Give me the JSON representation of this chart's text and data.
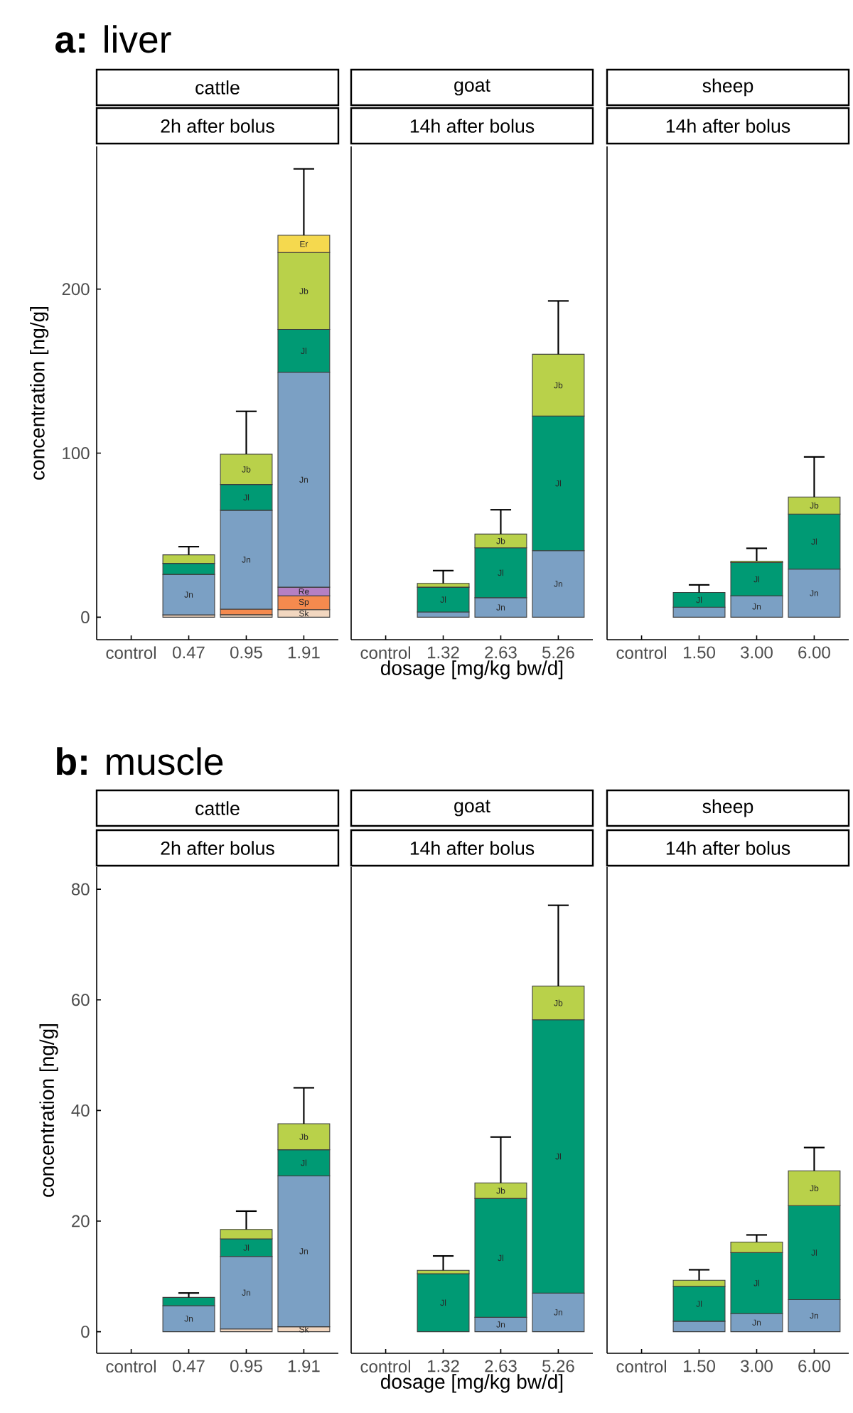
{
  "chart_data": [
    {
      "type": "bar",
      "stacked": true,
      "title": "cattle",
      "subtitle": "2h after bolus",
      "annotations": [
        "**a:** liver"
      ],
      "ylabel": "concentration [ng/g]",
      "categories": [
        "control",
        "0.47",
        "0.95",
        "1.91"
      ],
      "ylim": [
        -13.7,
        287
      ],
      "yticks": [
        0,
        100,
        200
      ],
      "series": [
        {
          "name": "Sk",
          "color": "#f2d7c0",
          "values": [
            null,
            1.4,
            1.5,
            4.6
          ]
        },
        {
          "name": "Sp",
          "color": "#f58a4e",
          "values": [
            null,
            null,
            3.4,
            8.4
          ]
        },
        {
          "name": "Re",
          "color": "#b580c4",
          "values": [
            null,
            null,
            null,
            5.3
          ]
        },
        {
          "name": "Jn",
          "color": "#7ba0c4",
          "values": [
            null,
            24.7,
            60.3,
            131
          ]
        },
        {
          "name": "Jl",
          "color": "#009a74",
          "values": [
            null,
            6.7,
            15.7,
            26.1
          ]
        },
        {
          "name": "Jb",
          "color": "#b9d14a",
          "values": [
            null,
            5.2,
            18.5,
            46.9
          ],
          "errors": [
            null,
            [
              38,
              43
            ],
            [
              99.4,
              125.5
            ],
            null
          ]
        },
        {
          "name": "Er",
          "color": "#f5d94e",
          "values": [
            null,
            null,
            null,
            10.5
          ],
          "errors": [
            null,
            null,
            null,
            [
              232.8,
              273.3
            ]
          ]
        }
      ]
    },
    {
      "type": "bar",
      "stacked": true,
      "title": "goat",
      "subtitle": "14h after bolus",
      "xlabel": "dosage [mg/kg bw/d]",
      "categories": [
        "control",
        "1.32",
        "2.63",
        "5.26"
      ],
      "ylim": [
        -13.7,
        287
      ],
      "tick_labels": "x",
      "series": [
        {
          "name": "Jn",
          "color": "#7ba0c4",
          "values": [
            null,
            3.2,
            11.9,
            40.6
          ]
        },
        {
          "name": "Jl",
          "color": "#009a74",
          "values": [
            null,
            15.1,
            30.4,
            82
          ]
        },
        {
          "name": "Jb",
          "color": "#b9d14a",
          "values": [
            null,
            2.3,
            8.4,
            37.7
          ],
          "errors": [
            null,
            [
              20.6,
              28.4
            ],
            [
              50.7,
              65.5
            ],
            [
              160.3,
              192.8
            ]
          ]
        }
      ]
    },
    {
      "type": "bar",
      "stacked": true,
      "title": "sheep",
      "subtitle": "14h after bolus",
      "categories": [
        "control",
        "1.50",
        "3.00",
        "6.00"
      ],
      "ylim": [
        -13.7,
        287
      ],
      "tick_labels": "x",
      "series": [
        {
          "name": "Jn",
          "color": "#7ba0c4",
          "values": [
            null,
            6.1,
            13,
            29.3
          ]
        },
        {
          "name": "Jl",
          "color": "#009a74",
          "values": [
            null,
            9,
            20.3,
            33.6
          ],
          "errors": [
            null,
            [
              15.1,
              19.7
            ],
            null,
            null
          ]
        },
        {
          "name": "Jb",
          "color": "#b9d14a",
          "values": [
            null,
            null,
            0.9,
            10.4
          ],
          "errors": [
            null,
            null,
            [
              34.2,
              42
            ],
            [
              73.3,
              97.7
            ]
          ]
        }
      ]
    },
    {
      "type": "bar",
      "stacked": true,
      "title": "cattle",
      "subtitle": "2h after bolus",
      "annotations": [
        "**b:** muscle"
      ],
      "ylabel": "concentration [ng/g]",
      "categories": [
        "control",
        "0.47",
        "0.95",
        "1.91"
      ],
      "ylim": [
        -3.9,
        84
      ],
      "yticks": [
        0,
        20,
        40,
        60,
        80
      ],
      "series": [
        {
          "name": "Sk",
          "color": "#f2d7c0",
          "values": [
            null,
            null,
            0.5,
            0.9
          ]
        },
        {
          "name": "Jn",
          "color": "#7ba0c4",
          "values": [
            null,
            4.7,
            13.1,
            27.3
          ]
        },
        {
          "name": "Jl",
          "color": "#009a74",
          "values": [
            null,
            1.5,
            3.2,
            4.7
          ],
          "errors": [
            null,
            [
              6.2,
              7
            ],
            null,
            null
          ]
        },
        {
          "name": "Jb",
          "color": "#b9d14a",
          "values": [
            null,
            null,
            1.7,
            4.7
          ],
          "errors": [
            null,
            null,
            [
              18.5,
              21.8
            ],
            [
              37.6,
              44.1
            ]
          ]
        }
      ]
    },
    {
      "type": "bar",
      "stacked": true,
      "title": "goat",
      "subtitle": "14h after bolus",
      "xlabel": "dosage [mg/kg bw/d]",
      "categories": [
        "control",
        "1.32",
        "2.63",
        "5.26"
      ],
      "ylim": [
        -3.9,
        84
      ],
      "tick_labels": "x",
      "series": [
        {
          "name": "Jn",
          "color": "#7ba0c4",
          "values": [
            null,
            null,
            2.6,
            7
          ]
        },
        {
          "name": "Jl",
          "color": "#009a74",
          "values": [
            null,
            10.5,
            21.5,
            49.4
          ]
        },
        {
          "name": "Jb",
          "color": "#b9d14a",
          "values": [
            null,
            0.6,
            2.8,
            6.1
          ],
          "errors": [
            null,
            [
              11.1,
              13.7
            ],
            [
              26.9,
              35.2
            ],
            [
              62.5,
              77.1
            ]
          ]
        }
      ]
    },
    {
      "type": "bar",
      "stacked": true,
      "title": "sheep",
      "subtitle": "14h after bolus",
      "categories": [
        "control",
        "1.50",
        "3.00",
        "6.00"
      ],
      "ylim": [
        -3.9,
        84
      ],
      "tick_labels": "x",
      "series": [
        {
          "name": "Jn",
          "color": "#7ba0c4",
          "values": [
            null,
            1.9,
            3.3,
            5.8
          ]
        },
        {
          "name": "Jl",
          "color": "#009a74",
          "values": [
            null,
            6.3,
            11,
            17
          ]
        },
        {
          "name": "Jb",
          "color": "#b9d14a",
          "values": [
            null,
            1.1,
            1.9,
            6.3
          ],
          "errors": [
            null,
            [
              9.3,
              11.2
            ],
            [
              16.2,
              17.5
            ],
            [
              29.1,
              33.3
            ]
          ]
        }
      ]
    }
  ]
}
